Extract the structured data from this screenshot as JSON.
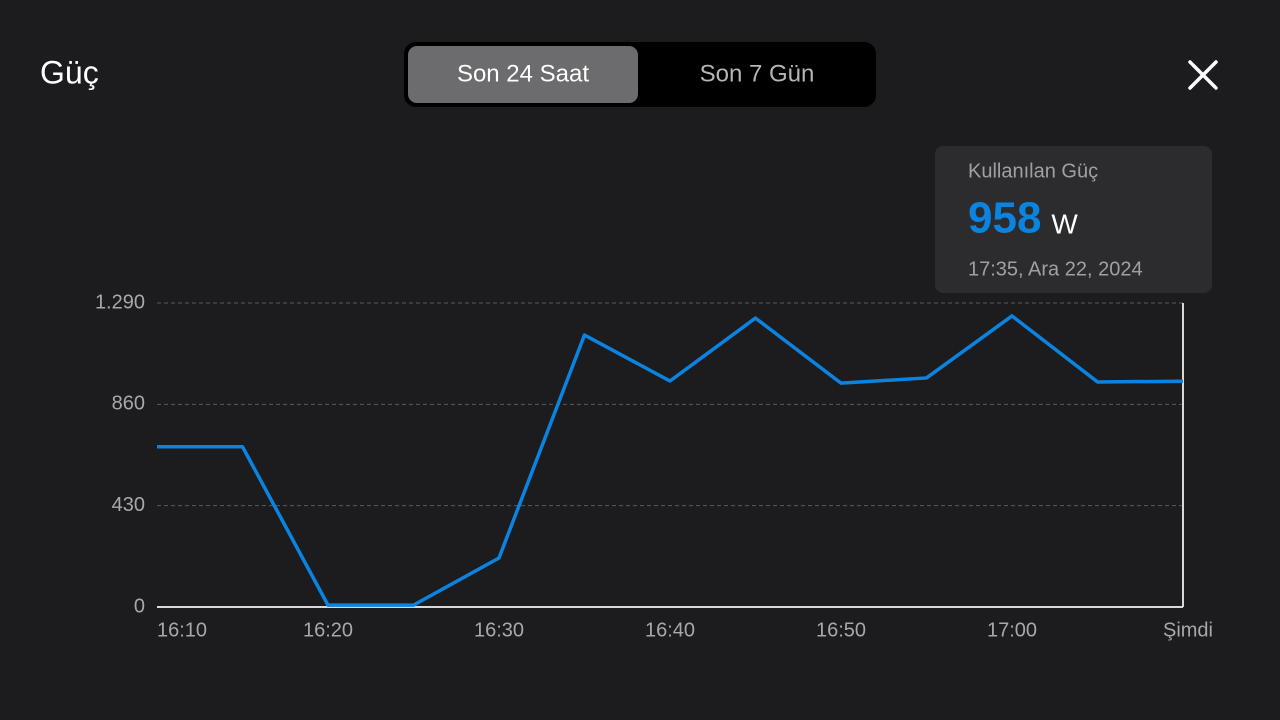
{
  "header": {
    "title": "Güç",
    "tabs": [
      "Son 24 Saat",
      "Son 7 Gün"
    ],
    "selected_tab": 0
  },
  "tooltip": {
    "label": "Kullanılan Güç",
    "value": "958",
    "unit": "W",
    "time": "17:35, Ara 22, 2024"
  },
  "chart_data": {
    "type": "line",
    "categories": [
      "16:10",
      null,
      "16:20",
      null,
      "16:30",
      null,
      "16:40",
      null,
      "16:50",
      null,
      "17:00",
      null,
      "Şimdi"
    ],
    "series": [
      {
        "color": "#0a84e0",
        "values": [
          680,
          680,
          8,
          8,
          208,
          1154,
          959,
          1226,
          950,
          972,
          1235,
          955,
          958
        ]
      }
    ],
    "ylim": [
      0,
      1290
    ],
    "yticks": [
      0,
      430,
      860,
      {
        "value": 1290,
        "label": "1.290"
      }
    ],
    "grid": true
  }
}
